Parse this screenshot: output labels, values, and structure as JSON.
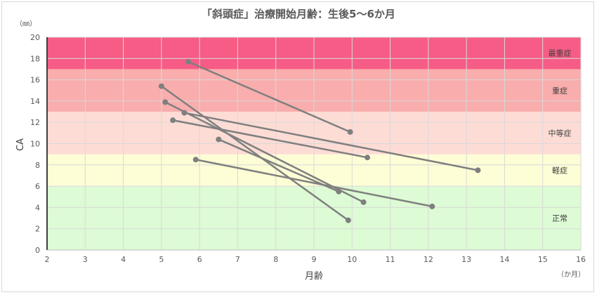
{
  "chart_data": {
    "type": "line",
    "title": "「斜頭症」治療開始月齢：生後5～6か月",
    "xlabel": "月齢",
    "ylabel": "CA",
    "x_unit": "（か月）",
    "y_unit": "（㎜）",
    "xlim": [
      2,
      16
    ],
    "ylim": [
      0,
      20
    ],
    "x_ticks": [
      "2",
      "3",
      "4",
      "5",
      "6",
      "7",
      "8",
      "9",
      "10",
      "11",
      "12",
      "13",
      "14",
      "15",
      "16"
    ],
    "y_ticks": [
      "0",
      "2",
      "4",
      "6",
      "8",
      "10",
      "12",
      "14",
      "16",
      "18",
      "20"
    ],
    "grid": true,
    "legend": "none",
    "bands": [
      {
        "label": "正常",
        "from": 0,
        "to": 6,
        "color": "#ddfbd4"
      },
      {
        "label": "軽症",
        "from": 6,
        "to": 9,
        "color": "#fdfdd6"
      },
      {
        "label": "中等症",
        "from": 9,
        "to": 13,
        "color": "#fddcd5"
      },
      {
        "label": "重症",
        "from": 13,
        "to": 17,
        "color": "#f9adad"
      },
      {
        "label": "最重症",
        "from": 17,
        "to": 20,
        "color": "#f65c85"
      }
    ],
    "series": [
      {
        "x": [
          5.7,
          9.95
        ],
        "y": [
          17.7,
          11.1
        ]
      },
      {
        "x": [
          5.0,
          9.9
        ],
        "y": [
          15.4,
          2.8
        ]
      },
      {
        "x": [
          5.1,
          10.3
        ],
        "y": [
          13.9,
          4.5
        ]
      },
      {
        "x": [
          5.6,
          13.3
        ],
        "y": [
          12.9,
          7.5
        ]
      },
      {
        "x": [
          5.3,
          10.4
        ],
        "y": [
          12.2,
          8.7
        ]
      },
      {
        "x": [
          6.5,
          9.65
        ],
        "y": [
          10.4,
          5.5
        ]
      },
      {
        "x": [
          5.9,
          12.1
        ],
        "y": [
          8.5,
          4.1
        ]
      }
    ],
    "line_color": "#7f7f7f"
  }
}
